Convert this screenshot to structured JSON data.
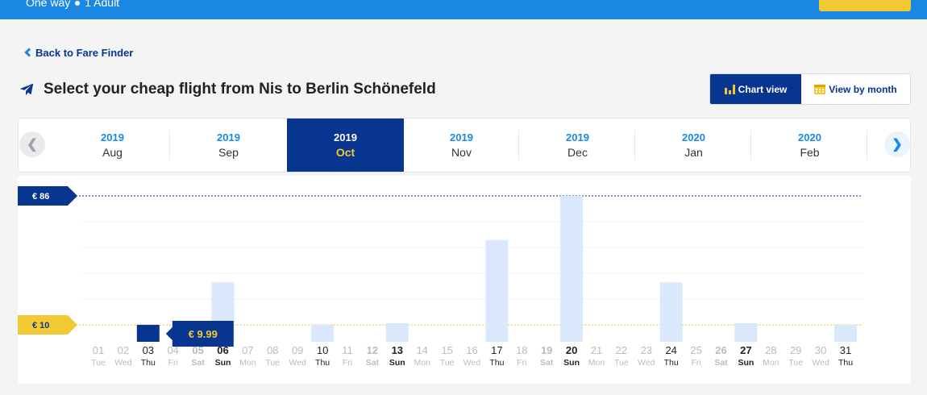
{
  "topbar": {
    "summary_trip": "One way",
    "summary_pax": "1 Adult"
  },
  "back_link": {
    "label": "Back to Fare Finder"
  },
  "title": "Select your cheap flight from Nis to Berlin Schönefeld",
  "view_toggle": {
    "chart_label": "Chart view",
    "month_label": "View by month"
  },
  "months": [
    {
      "year": "2019",
      "month": "Aug",
      "active": false
    },
    {
      "year": "2019",
      "month": "Sep",
      "active": false
    },
    {
      "year": "2019",
      "month": "Oct",
      "active": true
    },
    {
      "year": "2019",
      "month": "Nov",
      "active": false
    },
    {
      "year": "2019",
      "month": "Dec",
      "active": false
    },
    {
      "year": "2020",
      "month": "Jan",
      "active": false
    },
    {
      "year": "2020",
      "month": "Feb",
      "active": false
    }
  ],
  "colors": {
    "brand_dark": "#073590",
    "brand_blue": "#1a88e3",
    "accent_yellow": "#f1c933",
    "bar_light": "#d9e9fb",
    "day_disabled": "#b6bcc4"
  },
  "icons": {
    "plane": "plane-icon",
    "chart": "bar-chart-icon",
    "calendar": "calendar-icon",
    "prev": "chevron-left-icon",
    "next": "chevron-right-icon",
    "back": "chevron-left-icon"
  },
  "chart_data": {
    "type": "bar",
    "max_label": "€ 86",
    "min_label": "€ 10",
    "max_value": 86,
    "min_value": 10,
    "tooltip": {
      "text": "€ 9.99",
      "day": "03"
    },
    "selected_day": "03",
    "days": [
      {
        "d": "01",
        "w": "Tue",
        "v": null,
        "bold": false
      },
      {
        "d": "02",
        "w": "Wed",
        "v": null,
        "bold": false
      },
      {
        "d": "03",
        "w": "Thu",
        "v": 9.99,
        "bold": true,
        "selected": true
      },
      {
        "d": "04",
        "w": "Fri",
        "v": null,
        "bold": false
      },
      {
        "d": "05",
        "w": "Sat",
        "v": null,
        "bold": false,
        "semibold": true
      },
      {
        "d": "06",
        "w": "Sun",
        "v": 35,
        "bold": true
      },
      {
        "d": "07",
        "w": "Mon",
        "v": null,
        "bold": false
      },
      {
        "d": "08",
        "w": "Tue",
        "v": null,
        "bold": false
      },
      {
        "d": "09",
        "w": "Wed",
        "v": null,
        "bold": false
      },
      {
        "d": "10",
        "w": "Thu",
        "v": 10,
        "bold": true
      },
      {
        "d": "11",
        "w": "Fri",
        "v": null,
        "bold": false
      },
      {
        "d": "12",
        "w": "Sat",
        "v": null,
        "bold": false,
        "semibold": true
      },
      {
        "d": "13",
        "w": "Sun",
        "v": 11,
        "bold": true
      },
      {
        "d": "14",
        "w": "Mon",
        "v": null,
        "bold": false
      },
      {
        "d": "15",
        "w": "Tue",
        "v": null,
        "bold": false
      },
      {
        "d": "16",
        "w": "Wed",
        "v": null,
        "bold": false
      },
      {
        "d": "17",
        "w": "Thu",
        "v": 60,
        "bold": true
      },
      {
        "d": "18",
        "w": "Fri",
        "v": null,
        "bold": false
      },
      {
        "d": "19",
        "w": "Sat",
        "v": null,
        "bold": false,
        "semibold": true
      },
      {
        "d": "20",
        "w": "Sun",
        "v": 86,
        "bold": true
      },
      {
        "d": "21",
        "w": "Mon",
        "v": null,
        "bold": false
      },
      {
        "d": "22",
        "w": "Tue",
        "v": null,
        "bold": false
      },
      {
        "d": "23",
        "w": "Wed",
        "v": null,
        "bold": false
      },
      {
        "d": "24",
        "w": "Thu",
        "v": 35,
        "bold": true
      },
      {
        "d": "25",
        "w": "Fri",
        "v": null,
        "bold": false
      },
      {
        "d": "26",
        "w": "Sat",
        "v": null,
        "bold": false,
        "semibold": true
      },
      {
        "d": "27",
        "w": "Sun",
        "v": 11,
        "bold": true
      },
      {
        "d": "28",
        "w": "Mon",
        "v": null,
        "bold": false
      },
      {
        "d": "29",
        "w": "Tue",
        "v": null,
        "bold": false
      },
      {
        "d": "30",
        "w": "Wed",
        "v": null,
        "bold": false
      },
      {
        "d": "31",
        "w": "Thu",
        "v": 10,
        "bold": true
      }
    ]
  }
}
